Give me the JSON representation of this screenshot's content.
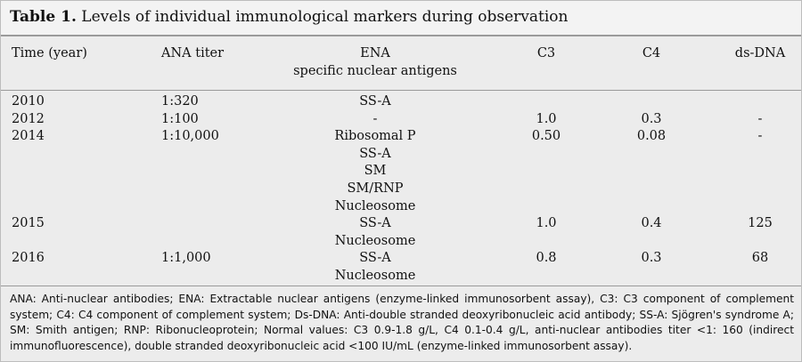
{
  "title": {
    "label": "Table 1.",
    "text": "Levels of individual immunological markers during observation"
  },
  "table": {
    "header": [
      [
        "Time (year)"
      ],
      [
        "ANA titer"
      ],
      [
        "ENA",
        "specific nuclear antigens"
      ],
      [
        "C3"
      ],
      [
        "C4"
      ],
      [
        "ds-DNA"
      ]
    ],
    "rows": [
      [
        "2010",
        "1:320",
        [
          "SS-A"
        ],
        null,
        null,
        null
      ],
      [
        "2012",
        "1:100",
        [
          "-"
        ],
        "1.0",
        "0.3",
        "-"
      ],
      [
        "2014",
        "1:10,000",
        [
          "Ribosomal P",
          "SS-A",
          "SM",
          "SM/RNP",
          "Nucleosome"
        ],
        "0.50",
        "0.08",
        "-"
      ],
      [
        "2015",
        null,
        [
          "SS-A",
          "Nucleosome"
        ],
        "1.0",
        "0.4",
        "125"
      ],
      [
        "2016",
        "1:1,000",
        [
          "SS-A",
          "Nucleosome"
        ],
        "0.8",
        "0.3",
        "68"
      ]
    ]
  },
  "footnote": "ANA: Anti-nuclear antibodies; ENA: Extractable nuclear antigens (enzyme-linked immunosorbent assay), C3: C3 component of complement system; C4: C4 component of complement system; Ds-DNA: Anti-double stranded deoxyribonucleic acid antibody; SS-A: Sjögren's syndrome A; SM: Smith antigen; RNP: Ribonucleoprotein; Normal values: C3 0.9-1.8 g/L, C4 0.1-0.4 g/L, anti-nuclear antibodies titer <1: 160 (indirect immunofluorescence), double stranded deoxyribonucleic acid <100 IU/mL (enzyme-linked immunosorbent assay)."
}
